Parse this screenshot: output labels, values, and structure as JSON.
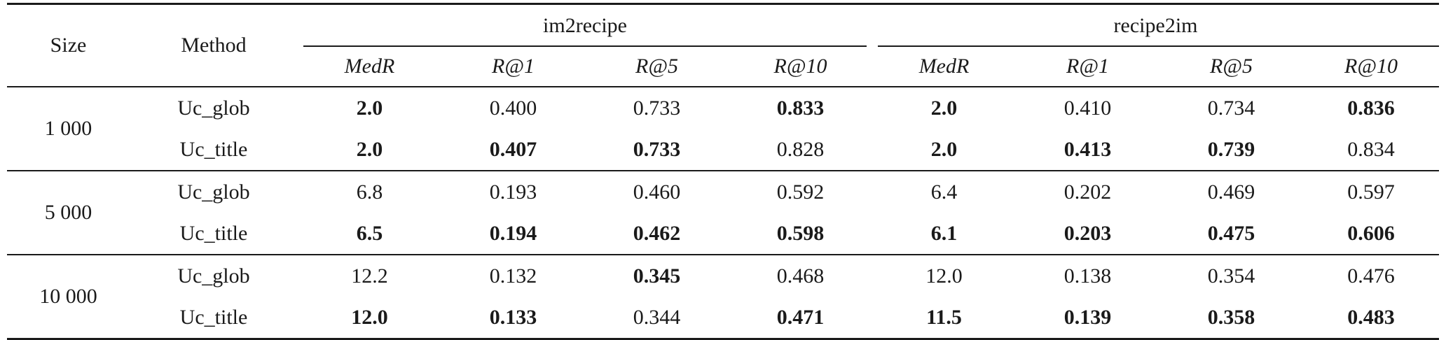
{
  "table": {
    "header": {
      "size": "Size",
      "method": "Method",
      "groups": [
        "im2recipe",
        "recipe2im"
      ],
      "metrics": [
        "MedR",
        "R@1",
        "R@5",
        "R@10",
        "MedR",
        "R@1",
        "R@5",
        "R@10"
      ]
    },
    "blocks": [
      {
        "size": "1 000",
        "rows": [
          {
            "method": "Uc_glob",
            "values": [
              "2.0",
              "0.400",
              "0.733",
              "0.833",
              "2.0",
              "0.410",
              "0.734",
              "0.836"
            ],
            "bold": [
              true,
              false,
              false,
              true,
              true,
              false,
              false,
              true
            ]
          },
          {
            "method": "Uc_title",
            "values": [
              "2.0",
              "0.407",
              "0.733",
              "0.828",
              "2.0",
              "0.413",
              "0.739",
              "0.834"
            ],
            "bold": [
              true,
              true,
              true,
              false,
              true,
              true,
              true,
              false
            ]
          }
        ]
      },
      {
        "size": "5 000",
        "rows": [
          {
            "method": "Uc_glob",
            "values": [
              "6.8",
              "0.193",
              "0.460",
              "0.592",
              "6.4",
              "0.202",
              "0.469",
              "0.597"
            ],
            "bold": [
              false,
              false,
              false,
              false,
              false,
              false,
              false,
              false
            ]
          },
          {
            "method": "Uc_title",
            "values": [
              "6.5",
              "0.194",
              "0.462",
              "0.598",
              "6.1",
              "0.203",
              "0.475",
              "0.606"
            ],
            "bold": [
              true,
              true,
              true,
              true,
              true,
              true,
              true,
              true
            ]
          }
        ]
      },
      {
        "size": "10 000",
        "rows": [
          {
            "method": "Uc_glob",
            "values": [
              "12.2",
              "0.132",
              "0.345",
              "0.468",
              "12.0",
              "0.138",
              "0.354",
              "0.476"
            ],
            "bold": [
              false,
              false,
              true,
              false,
              false,
              false,
              false,
              false
            ]
          },
          {
            "method": "Uc_title",
            "values": [
              "12.0",
              "0.133",
              "0.344",
              "0.471",
              "11.5",
              "0.139",
              "0.358",
              "0.483"
            ],
            "bold": [
              true,
              true,
              false,
              true,
              true,
              true,
              true,
              true
            ]
          }
        ]
      }
    ]
  }
}
